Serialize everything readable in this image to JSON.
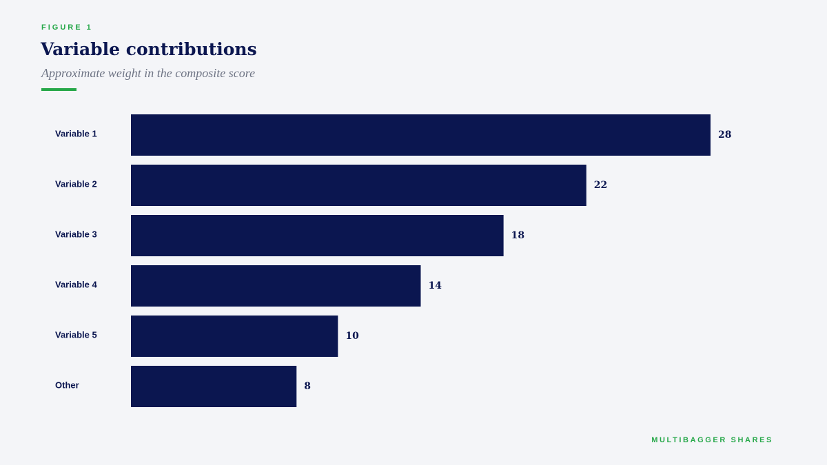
{
  "header": {
    "eyebrow": "FIGURE 1",
    "title": "Variable contributions",
    "subtitle": "Approximate weight in the composite score"
  },
  "footer": {
    "brand": "MULTIBAGGER SHARES"
  },
  "colors": {
    "bar": "#0b1650",
    "accent": "#27a84a",
    "background": "#f4f5f8"
  },
  "chart_data": {
    "type": "bar",
    "orientation": "horizontal",
    "categories": [
      "Variable 1",
      "Variable 2",
      "Variable 3",
      "Variable 4",
      "Variable 5",
      "Other"
    ],
    "values": [
      28,
      22,
      18,
      14,
      10,
      8
    ],
    "data_labels": [
      "28",
      "22",
      "18",
      "14",
      "10",
      "8"
    ],
    "title": "Variable contributions",
    "subtitle": "Approximate weight in the composite score",
    "xlabel": "",
    "ylabel": "",
    "xlim": [
      0,
      28
    ],
    "grid": false,
    "legend": "none"
  }
}
